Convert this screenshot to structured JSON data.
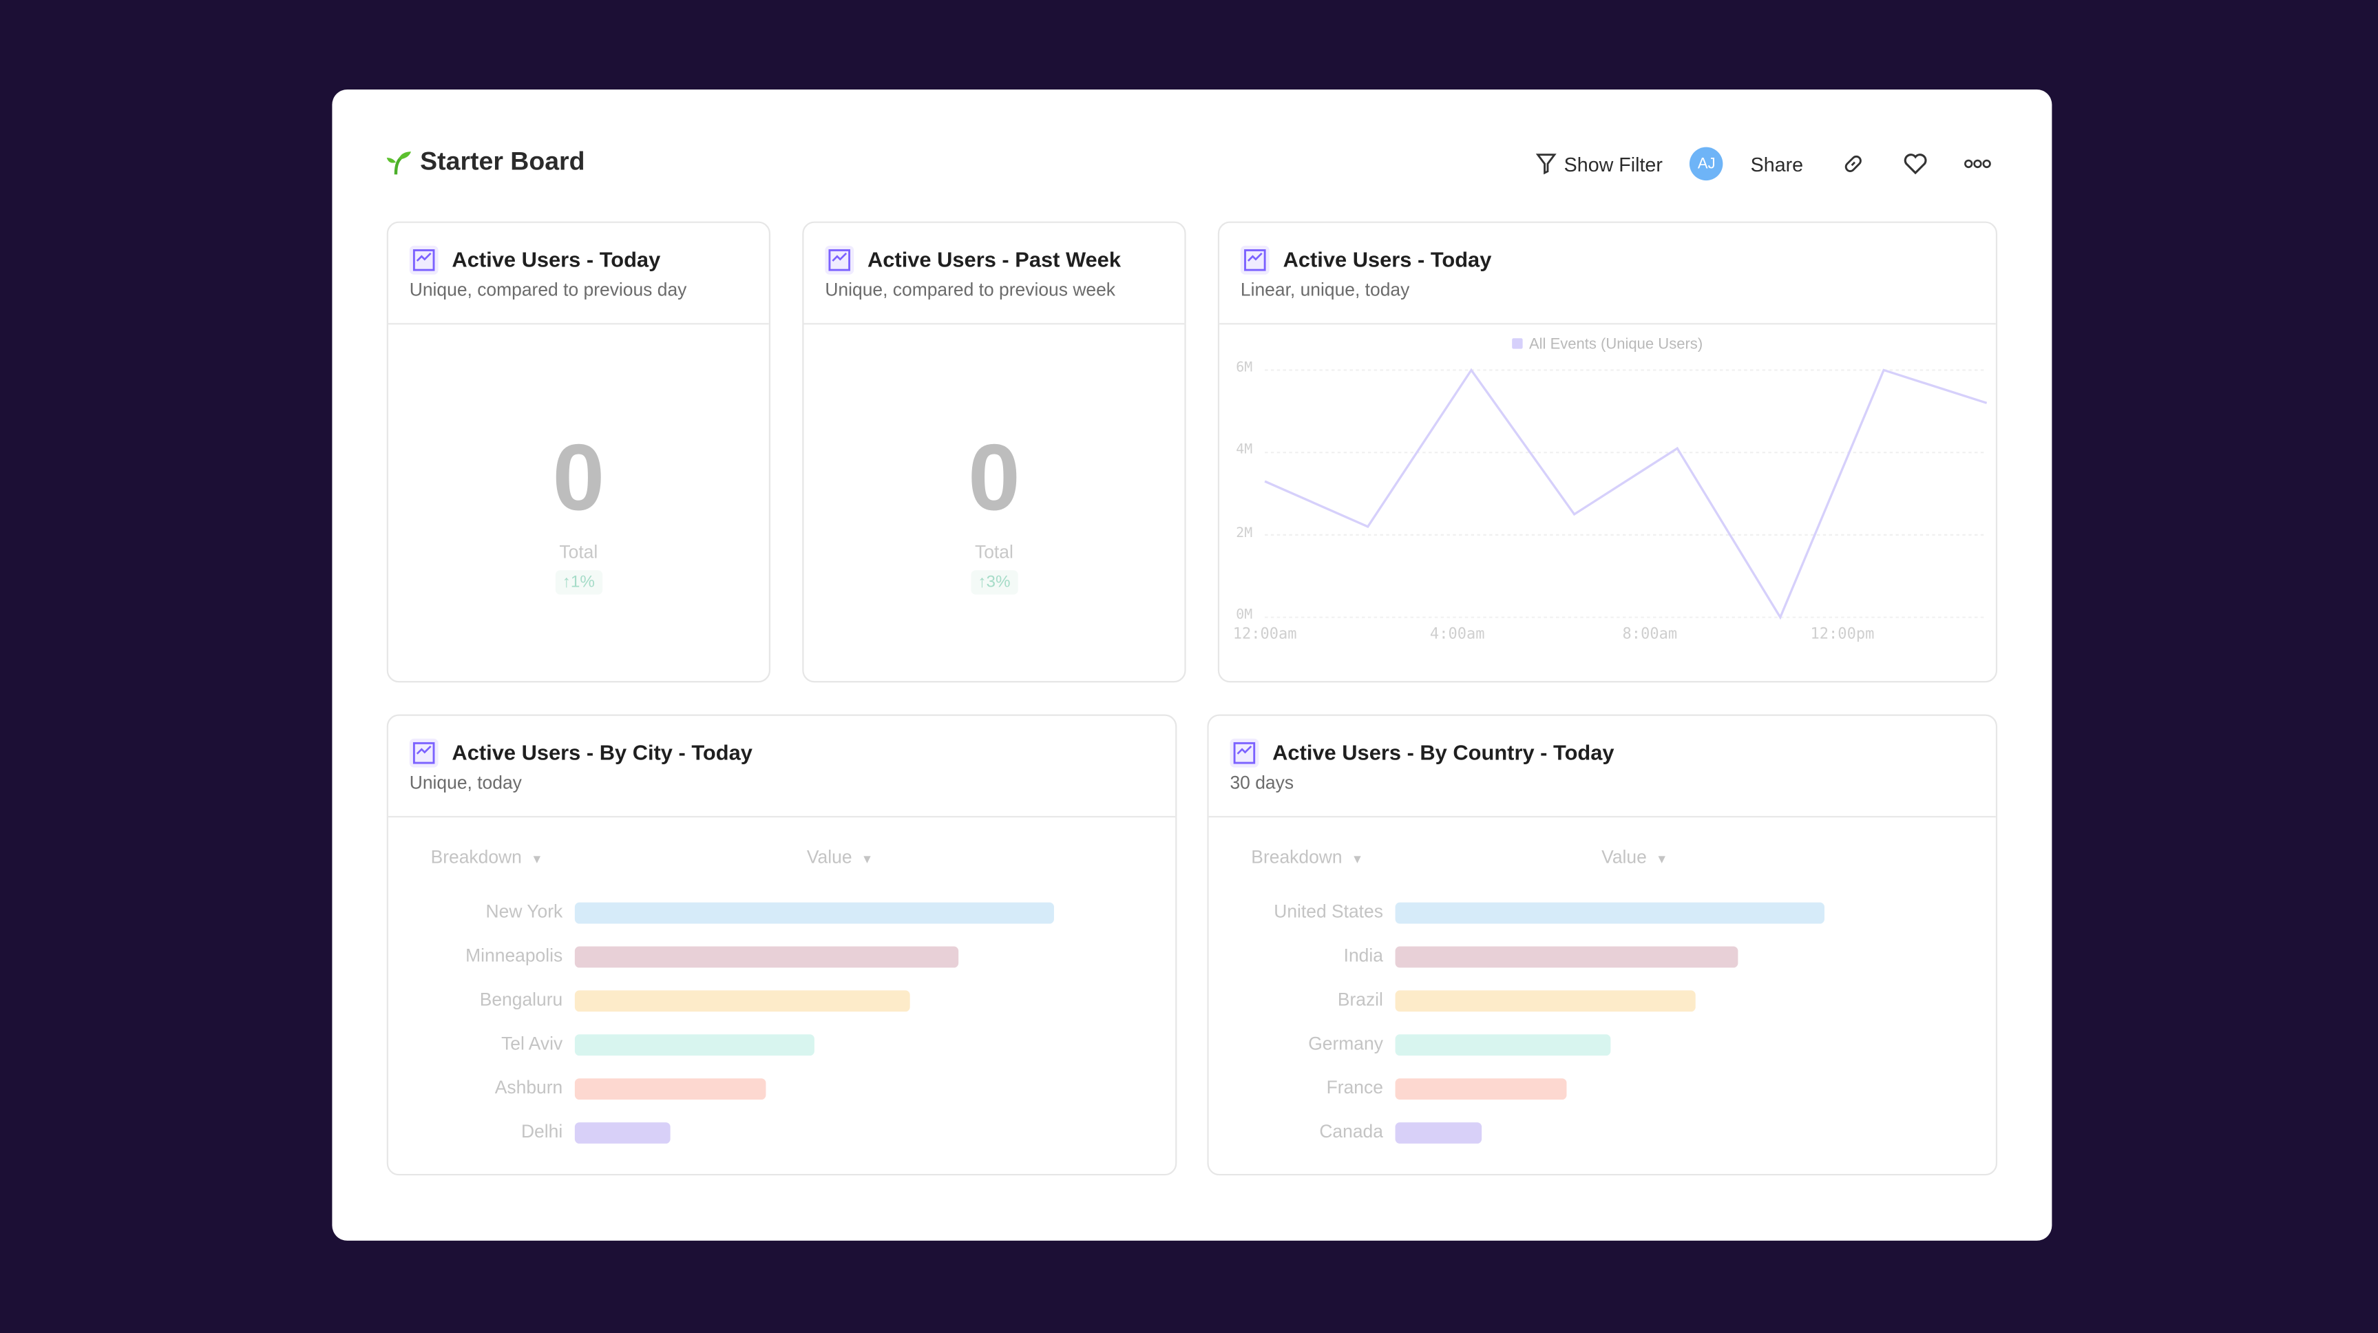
{
  "header": {
    "title": "Starter Board",
    "show_filter": "Show Filter",
    "avatar_initials": "AJ",
    "share": "Share",
    "icons": [
      "sprout-icon",
      "filter-icon",
      "link-icon",
      "heart-icon",
      "more-icon"
    ]
  },
  "colors": {
    "background": "#1c0f35",
    "accent": "#7b61ff",
    "avatar": "#6eb4f7",
    "badge": "#a6dcc8",
    "line": "#d6d0fb"
  },
  "tiles": {
    "today": {
      "title": "Active Users - Today",
      "subtitle": "Unique, compared to previous day",
      "value": "0",
      "label": "Total",
      "change": "↑1%"
    },
    "week": {
      "title": "Active Users - Past Week",
      "subtitle": "Unique, compared to previous week",
      "value": "0",
      "label": "Total",
      "change": "↑3%"
    },
    "line": {
      "title": "Active Users - Today",
      "subtitle": "Linear, unique, today"
    },
    "city": {
      "title": "Active Users - By City - Today",
      "subtitle": "Unique, today",
      "col_breakdown": "Breakdown",
      "col_value": "Value"
    },
    "country": {
      "title": "Active Users - By Country - Today",
      "subtitle": "30 days",
      "col_breakdown": "Breakdown",
      "col_value": "Value"
    }
  },
  "chart_data": [
    {
      "type": "line",
      "legend": "All Events (Unique Users)",
      "legend_placement": "top",
      "x": [
        0,
        2.14,
        4.29,
        6.43,
        8.57,
        10.71,
        12.86,
        15
      ],
      "values": [
        3.3,
        2.2,
        6.0,
        2.5,
        4.1,
        0.0,
        6.0,
        5.2
      ],
      "unit": "M",
      "xlim": [
        0,
        15
      ],
      "ylim": [
        0,
        6
      ],
      "yticks": [
        "0M",
        "2M",
        "4M",
        "6M"
      ],
      "xticks": [
        {
          "at": 0,
          "label": "12:00am"
        },
        {
          "at": 4,
          "label": "4:00am"
        },
        {
          "at": 8,
          "label": "8:00am"
        },
        {
          "at": 12,
          "label": "12:00pm"
        }
      ],
      "grid": true
    },
    {
      "type": "bar",
      "orientation": "horizontal",
      "categories": [
        "New York",
        "Minneapolis",
        "Bengaluru",
        "Tel Aviv",
        "Ashburn",
        "Delhi"
      ],
      "values": [
        100,
        80,
        70,
        50,
        40,
        20
      ],
      "colors": [
        "#d6ebf9",
        "#e8d0d7",
        "#fdebc9",
        "#d8f5ef",
        "#fdd8d0",
        "#d8d0f8"
      ]
    },
    {
      "type": "bar",
      "orientation": "horizontal",
      "categories": [
        "United States",
        "India",
        "Brazil",
        "Germany",
        "France",
        "Canada"
      ],
      "values": [
        100,
        80,
        70,
        50,
        40,
        20
      ],
      "colors": [
        "#d6ebf9",
        "#e8d0d7",
        "#fdebc9",
        "#d8f5ef",
        "#fdd8d0",
        "#d8d0f8"
      ]
    }
  ]
}
